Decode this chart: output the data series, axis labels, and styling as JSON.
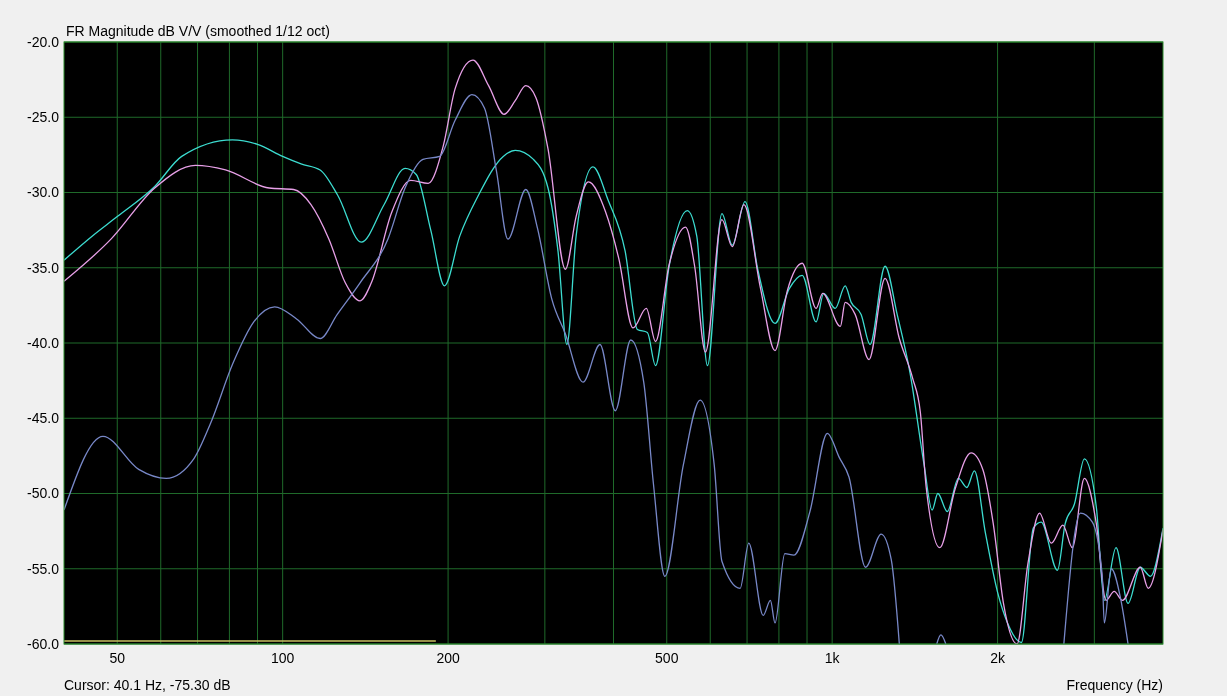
{
  "chart_data": {
    "type": "line",
    "title": "FR Magnitude dB V/V (smoothed 1/12 oct)",
    "xlabel": "Frequency (Hz)",
    "annotations": [
      "Cursor: 40.1 Hz, -75.30 dB"
    ],
    "log": "x",
    "grid": true,
    "xlim": [
      40,
      4000
    ],
    "ylim": [
      -60,
      -20
    ],
    "xticks": [
      50,
      {
        "value": 60,
        "label": null
      },
      {
        "value": 70,
        "label": null
      },
      {
        "value": 80,
        "label": null
      },
      {
        "value": 90,
        "label": null
      },
      100,
      200,
      {
        "value": 300,
        "label": null
      },
      {
        "value": 400,
        "label": null
      },
      500,
      {
        "value": 600,
        "label": null
      },
      {
        "value": 700,
        "label": null
      },
      {
        "value": 800,
        "label": null
      },
      {
        "value": 900,
        "label": null
      },
      {
        "value": 1000,
        "label": "1k"
      },
      {
        "value": 2000,
        "label": "2k"
      },
      {
        "value": 3000,
        "label": null
      }
    ],
    "yticks": [
      {
        "value": -60,
        "label": "-60.0"
      },
      {
        "value": -55,
        "label": "-55.0"
      },
      {
        "value": -50,
        "label": "-50.0"
      },
      {
        "value": -45,
        "label": "-45.0"
      },
      {
        "value": -40,
        "label": "-40.0"
      },
      {
        "value": -35,
        "label": "-35.0"
      },
      {
        "value": -30,
        "label": "-30.0"
      },
      {
        "value": -25,
        "label": "-25.0"
      },
      {
        "value": -20,
        "label": "-20.0"
      }
    ],
    "series": [
      {
        "color": "#3cdcd0",
        "x": [
          40,
          45,
          50,
          58.5,
          65.5,
          81,
          90,
          100,
          108,
          117,
          126,
          139,
          153,
          167,
          175,
          186,
          197,
          210,
          227,
          252,
          265,
          286,
          304,
          317,
          329,
          342,
          367,
          391,
          420,
          442,
          461,
          477,
          505,
          545,
          567,
          593,
          630,
          658,
          694,
          733,
          787,
          835,
          882,
          935,
          965,
          1013,
          1056,
          1083,
          1129,
          1172,
          1248,
          1313,
          1386,
          1470,
          1520,
          1557,
          1620,
          1697,
          1758,
          1815,
          1900,
          1998,
          2085,
          2210,
          2323,
          2401,
          2570,
          2655,
          2760,
          2877,
          3025,
          3128,
          3285,
          3455,
          3637,
          3795,
          4000
        ],
        "values": [
          -34.5,
          -32.9,
          -31.6,
          -29.6,
          -27.6,
          -26.5,
          -26.8,
          -27.6,
          -28.1,
          -28.5,
          -30.2,
          -33.3,
          -30.8,
          -28.4,
          -28.8,
          -32.5,
          -36.2,
          -32.9,
          -30.2,
          -27.6,
          -27.2,
          -27.8,
          -29.7,
          -33.9,
          -40.1,
          -32.9,
          -28.3,
          -30.5,
          -33.9,
          -39.1,
          -39.3,
          -41.5,
          -34.9,
          -31.2,
          -32.9,
          -41.5,
          -31.4,
          -33.5,
          -30.6,
          -35.2,
          -38.7,
          -36.4,
          -35.5,
          -38.6,
          -36.7,
          -37.7,
          -36.2,
          -37.3,
          -38.1,
          -40.1,
          -34.9,
          -38.1,
          -42.0,
          -48.1,
          -51.1,
          -50.0,
          -51.2,
          -49.0,
          -49.6,
          -48.5,
          -52.6,
          -56.5,
          -58.6,
          -59.9,
          -52.3,
          -51.9,
          -55.1,
          -52.0,
          -50.7,
          -47.7,
          -50.9,
          -57.1,
          -53.6,
          -57.3,
          -54.9,
          -55.5,
          -52.3
        ]
      },
      {
        "color": "#e8a0e8",
        "x": [
          40,
          48.7,
          58.5,
          69.4,
          78.7,
          94.5,
          104.7,
          112.6,
          121.4,
          130,
          138.3,
          145,
          158,
          171,
          184,
          196,
          206,
          222,
          237,
          253,
          265,
          277,
          289,
          304,
          327,
          342,
          360,
          387,
          409,
          434,
          459,
          477,
          505,
          541,
          562,
          588,
          630,
          658,
          691,
          740,
          787,
          829,
          882,
          935,
          961,
          1035,
          1056,
          1101,
          1167,
          1248,
          1325,
          1400,
          1447,
          1483,
          1570,
          1674,
          1790,
          1880,
          1964,
          2050,
          2170,
          2270,
          2385,
          2505,
          2630,
          2735,
          2877,
          3025,
          3150,
          3260,
          3375,
          3637,
          3760,
          4000
        ],
        "values": [
          -35.9,
          -33.1,
          -29.7,
          -28.2,
          -28.5,
          -29.7,
          -29.8,
          -30.8,
          -33.1,
          -36.0,
          -37.2,
          -36.0,
          -31.3,
          -29.2,
          -29.4,
          -26.9,
          -23.1,
          -21.2,
          -22.9,
          -24.8,
          -23.9,
          -22.9,
          -23.7,
          -27.1,
          -35.1,
          -31.6,
          -29.3,
          -31.3,
          -34.4,
          -39.0,
          -37.7,
          -39.9,
          -34.8,
          -32.3,
          -34.9,
          -40.6,
          -31.8,
          -33.6,
          -30.8,
          -36.3,
          -40.5,
          -36.5,
          -34.7,
          -37.7,
          -36.7,
          -38.9,
          -37.3,
          -38.1,
          -41.1,
          -35.7,
          -39.7,
          -42.3,
          -44.6,
          -49.6,
          -53.6,
          -49.7,
          -47.3,
          -48.4,
          -52.0,
          -57.3,
          -60.0,
          -54.7,
          -51.3,
          -53.3,
          -52.1,
          -53.6,
          -49.0,
          -52.0,
          -57.1,
          -56.5,
          -57.1,
          -54.9,
          -56.3,
          -52.4
        ]
      },
      {
        "color": "#7888c8",
        "x": [
          40,
          47.1,
          54.7,
          61.4,
          68.9,
          73.8,
          81.3,
          88.6,
          96.7,
          106,
          117,
          125.7,
          138.3,
          155.4,
          167,
          180,
          193,
          206,
          221,
          233,
          245,
          257,
          277,
          291,
          309,
          327,
          352,
          378,
          403,
          430,
          454,
          473,
          496,
          536,
          575,
          610,
          630,
          680,
          705,
          749,
          772,
          787,
          820,
          852,
          911,
          980,
          1030,
          1073,
          1150,
          1228,
          1281,
          1325,
          1450,
          1550,
          1577,
          1610,
          1700,
          2640,
          2830,
          2975,
          3100,
          3128,
          3220,
          3350,
          3455
        ],
        "values": [
          -51.1,
          -46.2,
          -48.4,
          -49.0,
          -47.7,
          -45.4,
          -41.3,
          -38.6,
          -37.6,
          -38.4,
          -39.7,
          -38.1,
          -36.0,
          -33.1,
          -29.7,
          -27.8,
          -27.6,
          -25.2,
          -23.5,
          -24.4,
          -28.6,
          -33.1,
          -29.8,
          -32.4,
          -37.1,
          -39.4,
          -42.6,
          -40.1,
          -44.5,
          -39.8,
          -42.6,
          -49.4,
          -55.5,
          -48.1,
          -43.8,
          -48.1,
          -54.5,
          -56.3,
          -53.3,
          -58.1,
          -57.1,
          -58.6,
          -54.0,
          -54.1,
          -51.2,
          -46.0,
          -47.6,
          -48.9,
          -54.9,
          -52.7,
          -54.4,
          -60.0,
          null,
          -60.0,
          -59.4,
          -60.0,
          null,
          -60.0,
          -51.3,
          -51.9,
          -55.4,
          -58.6,
          -55.0,
          -57.0,
          -60.0
        ]
      },
      {
        "color": "#c8c060",
        "x": [
          40,
          190
        ],
        "values": [
          -59.8,
          -59.8
        ]
      }
    ]
  }
}
